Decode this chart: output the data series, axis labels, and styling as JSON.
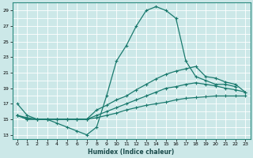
{
  "xlabel": "Humidex (Indice chaleur)",
  "ylabel": "",
  "bg_color": "#cce8e8",
  "grid_color": "#ffffff",
  "line_color": "#1a7a6e",
  "xlim": [
    -0.5,
    23.5
  ],
  "ylim": [
    12.5,
    30.0
  ],
  "yticks": [
    13,
    15,
    17,
    19,
    21,
    23,
    25,
    27,
    29
  ],
  "xticks": [
    0,
    1,
    2,
    3,
    4,
    5,
    6,
    7,
    8,
    9,
    10,
    11,
    12,
    13,
    14,
    15,
    16,
    17,
    18,
    19,
    20,
    21,
    22,
    23
  ],
  "line1_x": [
    0,
    1,
    2,
    3,
    4,
    5,
    6,
    7,
    8,
    9,
    10,
    11,
    12,
    13,
    14,
    15,
    16,
    17,
    18,
    19,
    20,
    21,
    22
  ],
  "line1_y": [
    17.0,
    15.5,
    15.0,
    15.0,
    14.5,
    14.0,
    13.5,
    13.0,
    14.0,
    18.0,
    22.5,
    24.5,
    27.0,
    29.0,
    29.5,
    29.0,
    28.0,
    22.5,
    20.5,
    20.0,
    19.5,
    19.5,
    19.2
  ],
  "line2_x": [
    0,
    1,
    2,
    3,
    4,
    5,
    6,
    7,
    8,
    9,
    10,
    11,
    12,
    13,
    14,
    15,
    16,
    17,
    18,
    19,
    20,
    21,
    22,
    23
  ],
  "line2_y": [
    15.5,
    15.0,
    15.0,
    15.0,
    15.0,
    15.0,
    15.0,
    15.0,
    16.2,
    16.8,
    17.5,
    18.0,
    18.8,
    19.5,
    20.2,
    20.8,
    21.2,
    21.5,
    21.8,
    20.5,
    20.3,
    19.8,
    19.5,
    18.5
  ],
  "line3_x": [
    0,
    1,
    2,
    3,
    4,
    5,
    6,
    7,
    8,
    9,
    10,
    11,
    12,
    13,
    14,
    15,
    16,
    17,
    18,
    19,
    20,
    21,
    22,
    23
  ],
  "line3_y": [
    15.5,
    15.0,
    15.0,
    15.0,
    15.0,
    15.0,
    15.0,
    15.0,
    15.5,
    16.0,
    16.5,
    17.0,
    17.5,
    18.0,
    18.5,
    19.0,
    19.2,
    19.5,
    19.7,
    19.5,
    19.3,
    19.0,
    18.8,
    18.5
  ],
  "line4_x": [
    0,
    1,
    2,
    3,
    4,
    5,
    6,
    7,
    8,
    9,
    10,
    11,
    12,
    13,
    14,
    15,
    16,
    17,
    18,
    19,
    20,
    21,
    22,
    23
  ],
  "line4_y": [
    15.5,
    15.2,
    15.0,
    15.0,
    15.0,
    15.0,
    15.0,
    15.0,
    15.2,
    15.5,
    15.8,
    16.2,
    16.5,
    16.8,
    17.0,
    17.2,
    17.5,
    17.7,
    17.8,
    17.9,
    18.0,
    18.0,
    18.0,
    18.0
  ]
}
